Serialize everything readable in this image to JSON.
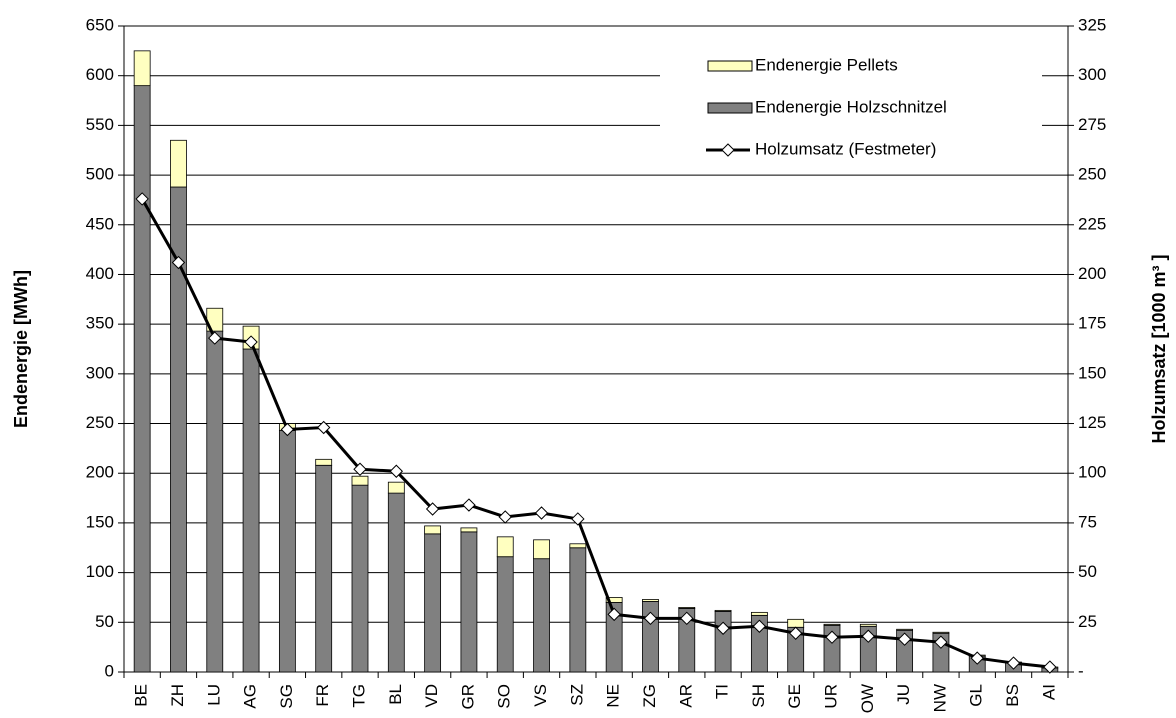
{
  "chart_data": {
    "type": "bar",
    "categories": [
      "BE",
      "ZH",
      "LU",
      "AG",
      "SG",
      "FR",
      "TG",
      "BL",
      "VD",
      "GR",
      "SO",
      "VS",
      "SZ",
      "NE",
      "ZG",
      "AR",
      "TI",
      "SH",
      "GE",
      "UR",
      "OW",
      "JU",
      "NW",
      "GL",
      "BS",
      "AI"
    ],
    "series": [
      {
        "name": "Endenergie Holzschnitzel",
        "color": "#808080",
        "stack": true,
        "values": [
          590,
          488,
          343,
          325,
          243,
          208,
          188,
          180,
          139,
          141,
          116,
          114,
          125,
          70,
          71,
          64,
          61,
          57,
          45,
          47,
          46,
          42,
          39,
          16,
          9,
          4
        ]
      },
      {
        "name": "Endenergie Pellets",
        "color": "#ffffc0",
        "stack": true,
        "values": [
          35,
          47,
          23,
          23,
          7,
          6,
          9,
          11,
          8,
          4,
          20,
          19,
          4,
          5,
          2,
          1,
          1,
          3,
          8,
          1,
          2,
          1,
          1,
          1,
          1,
          1
        ]
      },
      {
        "name": "Holzumsatz (Festmeter)",
        "color": "#000000",
        "type": "line",
        "axis": "y2",
        "values": [
          238,
          206,
          168,
          166,
          122,
          123,
          102,
          101,
          82,
          84,
          78,
          80,
          77,
          29,
          27,
          27,
          22,
          23,
          19.5,
          17.5,
          18,
          16.5,
          15,
          7,
          4.5,
          2.5
        ]
      }
    ],
    "ylabel": "Endenergie [MWh]",
    "y2label": "Holzumsatz [1000 m³ ]",
    "ylim": [
      0,
      650
    ],
    "yticks": [
      0,
      50,
      100,
      150,
      200,
      250,
      300,
      350,
      400,
      450,
      500,
      550,
      600,
      650
    ],
    "y2lim": [
      0,
      325
    ],
    "y2ticks": [
      {
        "value": 0,
        "label": "-"
      },
      25,
      50,
      75,
      100,
      125,
      150,
      175,
      200,
      225,
      250,
      275,
      300,
      325
    ],
    "grid": true,
    "legend": "upper right"
  }
}
